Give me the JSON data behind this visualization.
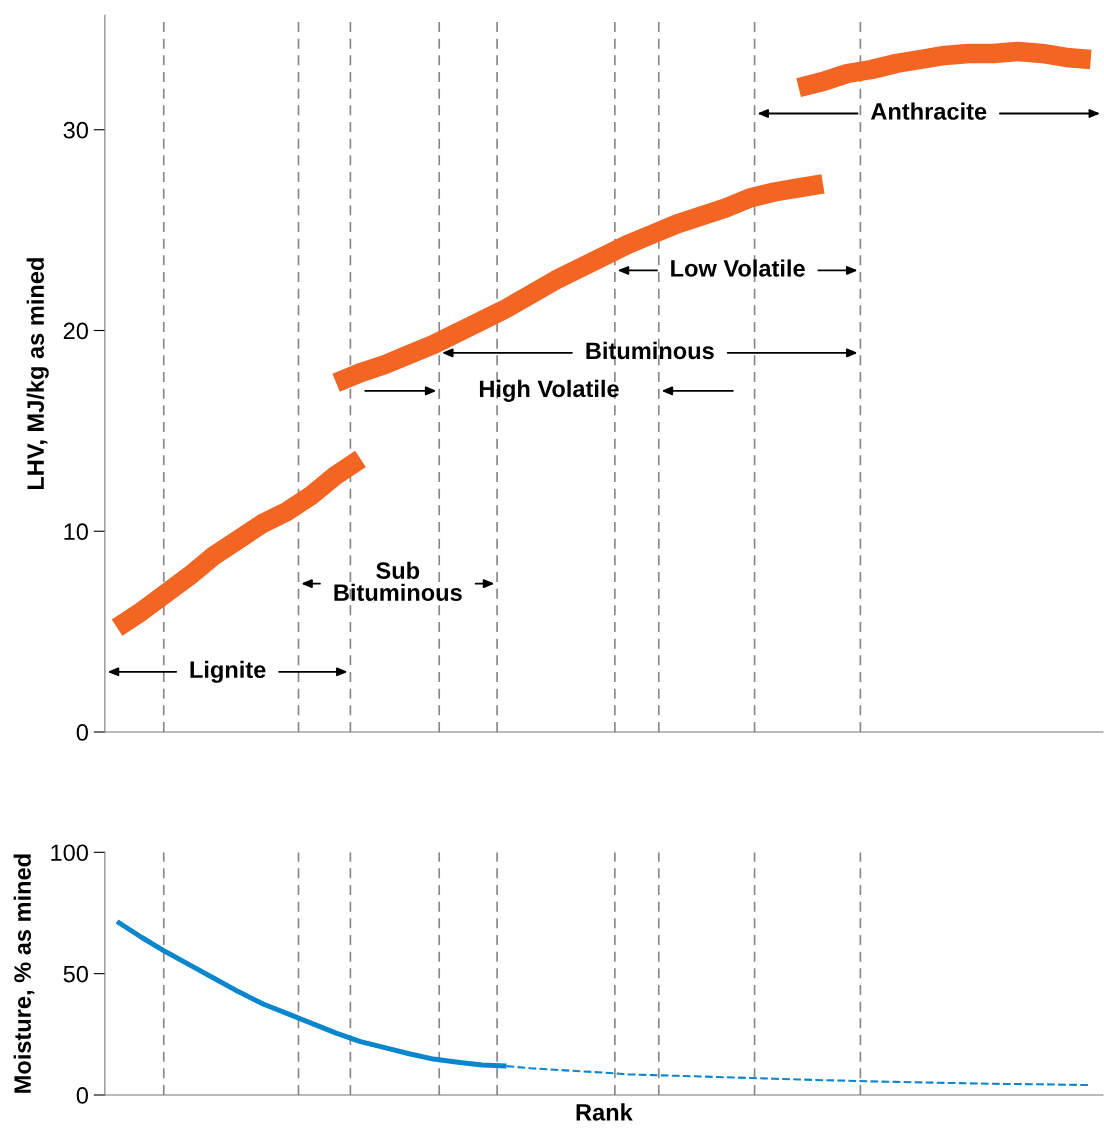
{
  "chart_data": [
    {
      "type": "line",
      "ylabel": "LHV, MJ/kg as mined",
      "categories": [
        null,
        null,
        null,
        null,
        null,
        null,
        null,
        null,
        null,
        null,
        null,
        null,
        null,
        null,
        null,
        null,
        null,
        null,
        null,
        null,
        null,
        null,
        null,
        null,
        null,
        null,
        null,
        null,
        null,
        null,
        null,
        null,
        null,
        null,
        null,
        null,
        null,
        null,
        null,
        null,
        null
      ],
      "ylim": [
        0,
        35.7
      ],
      "yticks": [
        0,
        10,
        20,
        30
      ],
      "tick_labels": "y",
      "annotations": [
        "Lignite",
        "Sub\nBituminous",
        "High Volatile",
        "Bituminous",
        "Low Volatile",
        "Anthracite"
      ],
      "series": [
        {
          "color": "#f26522",
          "values": [
            5.2,
            6.0,
            6.9,
            7.8,
            8.8,
            9.6,
            10.4,
            11.0,
            11.8,
            12.8,
            13.6,
            null,
            null,
            null,
            null,
            null,
            null,
            null,
            null,
            null,
            null,
            null,
            null,
            null,
            null,
            null,
            null,
            null,
            null,
            null,
            null,
            null,
            null,
            null,
            null,
            null,
            null,
            null,
            null,
            null,
            null
          ]
        },
        {
          "color": "#f26522",
          "values": [
            null,
            null,
            null,
            null,
            null,
            null,
            null,
            null,
            null,
            17.4,
            17.9,
            18.3,
            18.8,
            19.3,
            19.9,
            20.5,
            21.1,
            21.8,
            22.5,
            23.1,
            23.7,
            24.3,
            24.8,
            25.3,
            25.7,
            26.1,
            26.6,
            26.9,
            27.1,
            27.3,
            null,
            null,
            null,
            null,
            null,
            null,
            null,
            null,
            null,
            null,
            null
          ]
        },
        {
          "color": "#f26522",
          "values": [
            null,
            null,
            null,
            null,
            null,
            null,
            null,
            null,
            null,
            null,
            null,
            null,
            null,
            null,
            null,
            null,
            null,
            null,
            null,
            null,
            null,
            null,
            null,
            null,
            null,
            null,
            null,
            null,
            32.1,
            32.4,
            32.8,
            33.0,
            33.3,
            33.5,
            33.7,
            33.8,
            33.8,
            33.9,
            33.8,
            33.6,
            33.5
          ]
        }
      ]
    },
    {
      "type": "line",
      "xlabel": "Rank",
      "ylabel": "Moisture, % as mined",
      "categories": [
        null,
        null,
        null,
        null,
        null,
        null,
        null,
        null,
        null,
        null,
        null,
        null,
        null,
        null,
        null,
        null,
        null,
        null,
        null,
        null,
        null,
        null,
        null,
        null,
        null,
        null,
        null,
        null,
        null,
        null,
        null,
        null,
        null,
        null,
        null,
        null,
        null,
        null,
        null,
        null,
        null
      ],
      "ylim": [
        0,
        100
      ],
      "yticks": [
        0,
        50,
        100
      ],
      "tick_labels": "y",
      "series": [
        {
          "color": "#0a86cc",
          "line_style": "solid",
          "values": [
            71.5,
            65,
            59,
            53.5,
            48,
            42.5,
            37.5,
            33.5,
            29.5,
            25.5,
            22,
            19.5,
            17,
            14.8,
            13.5,
            12.4,
            11.9,
            null,
            null,
            null,
            null,
            null,
            null,
            null,
            null,
            null,
            null,
            null,
            null,
            null,
            null,
            null,
            null,
            null,
            null,
            null,
            null,
            null,
            null,
            null,
            null
          ]
        },
        {
          "color": "#0a86cc",
          "line_style": "dashed",
          "values": [
            null,
            null,
            null,
            null,
            null,
            null,
            null,
            null,
            null,
            null,
            null,
            null,
            null,
            null,
            null,
            null,
            11.9,
            11.0,
            10.4,
            9.8,
            9.2,
            8.5,
            8.2,
            7.9,
            7.6,
            7.3,
            7.0,
            6.7,
            6.4,
            6.1,
            5.9,
            5.6,
            5.4,
            5.2,
            5.0,
            4.8,
            4.6,
            4.5,
            4.4,
            4.2,
            4.1
          ]
        }
      ]
    }
  ]
}
